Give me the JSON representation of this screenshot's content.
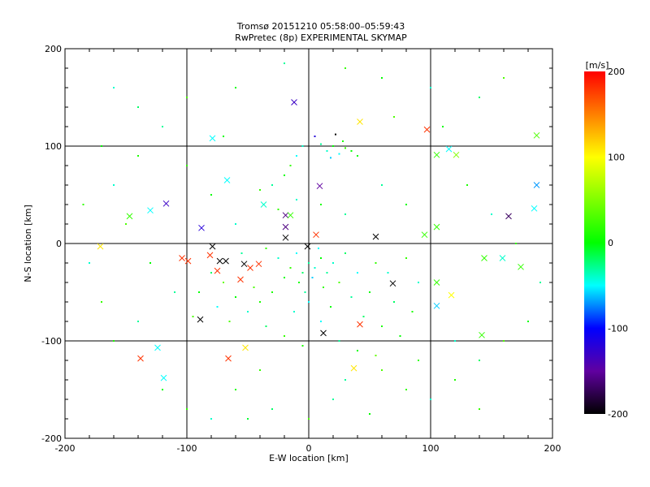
{
  "chart_data": {
    "type": "scatter",
    "title": "Tromsø 20151210 05:58:00–05:59:43",
    "subtitle": "RwPretec (8p) EXPERIMENTAL SKYMAP",
    "xlabel": "E-W location [km]",
    "ylabel": "N-S location [km]",
    "xlim": [
      -200,
      200
    ],
    "ylim": [
      -200,
      200
    ],
    "xticks": [
      "-200",
      "-100",
      "0",
      "100",
      "200"
    ],
    "yticks": [
      "-200",
      "-100",
      "0",
      "100",
      "200"
    ],
    "grid": true,
    "colorbar": {
      "label": "[m/s]",
      "range": [
        -200,
        200
      ],
      "ticks": [
        "200",
        "100",
        "0",
        "-100",
        "-200"
      ]
    },
    "crosses": [
      [
        -12,
        145,
        -130
      ],
      [
        97,
        117,
        180
      ],
      [
        -79,
        108,
        -50
      ],
      [
        187,
        111,
        30
      ],
      [
        115,
        97,
        -50
      ],
      [
        105,
        91,
        20
      ],
      [
        121,
        91,
        50
      ],
      [
        -67,
        65,
        -50
      ],
      [
        9,
        59,
        -150
      ],
      [
        -117,
        41,
        -130
      ],
      [
        -130,
        34,
        -50
      ],
      [
        -147,
        28,
        20
      ],
      [
        187,
        60,
        -70
      ],
      [
        164,
        28,
        -170
      ],
      [
        185,
        36,
        -50
      ],
      [
        -19,
        29,
        -160
      ],
      [
        -15,
        29,
        20
      ],
      [
        -19,
        17,
        -160
      ],
      [
        -88,
        16,
        -120
      ],
      [
        -37,
        40,
        -40
      ],
      [
        -19,
        6,
        -200
      ],
      [
        6,
        9,
        180
      ],
      [
        55,
        7,
        -200
      ],
      [
        95,
        9,
        20
      ],
      [
        105,
        17,
        20
      ],
      [
        -171,
        -3,
        110
      ],
      [
        -79,
        -3,
        -200
      ],
      [
        -1,
        -3,
        -200
      ],
      [
        -104,
        -15,
        180
      ],
      [
        -99,
        -18,
        180
      ],
      [
        -81,
        -12,
        180
      ],
      [
        -73,
        -18,
        -200
      ],
      [
        -68,
        -18,
        -200
      ],
      [
        -53,
        -21,
        -200
      ],
      [
        -41,
        -21,
        180
      ],
      [
        -48,
        -25,
        180
      ],
      [
        -75,
        -28,
        180
      ],
      [
        -56,
        -37,
        180
      ],
      [
        69,
        -41,
        -200
      ],
      [
        105,
        -40,
        20
      ],
      [
        117,
        -53,
        100
      ],
      [
        105,
        -64,
        -60
      ],
      [
        144,
        -15,
        20
      ],
      [
        159,
        -15,
        -40
      ],
      [
        174,
        -24,
        20
      ],
      [
        -89,
        -78,
        -200
      ],
      [
        42,
        -83,
        180
      ],
      [
        12,
        -92,
        -200
      ],
      [
        142,
        -94,
        20
      ],
      [
        -124,
        -107,
        -50
      ],
      [
        -138,
        -118,
        180
      ],
      [
        -66,
        -118,
        180
      ],
      [
        -52,
        -107,
        110
      ],
      [
        37,
        -128,
        110
      ],
      [
        -119,
        -138,
        -50
      ],
      [
        42,
        125,
        110
      ]
    ],
    "dots": [
      [
        0,
        -20,
        -30
      ],
      [
        5,
        -25,
        -40
      ],
      [
        -5,
        -30,
        -20
      ],
      [
        10,
        -15,
        0
      ],
      [
        -10,
        -10,
        -50
      ],
      [
        3,
        -35,
        -60
      ],
      [
        -8,
        -40,
        10
      ],
      [
        15,
        -30,
        -30
      ],
      [
        -15,
        -25,
        20
      ],
      [
        20,
        -20,
        -40
      ],
      [
        -20,
        -35,
        0
      ],
      [
        8,
        -5,
        -50
      ],
      [
        -3,
        -50,
        -30
      ],
      [
        12,
        -45,
        20
      ],
      [
        -25,
        -15,
        -40
      ],
      [
        25,
        -40,
        30
      ],
      [
        0,
        -60,
        -50
      ],
      [
        -30,
        -50,
        10
      ],
      [
        30,
        -10,
        -20
      ],
      [
        -12,
        -70,
        -40
      ],
      [
        18,
        -65,
        0
      ],
      [
        35,
        -55,
        -30
      ],
      [
        -35,
        -5,
        20
      ],
      [
        40,
        -30,
        -50
      ],
      [
        -40,
        -60,
        10
      ],
      [
        45,
        -75,
        -20
      ],
      [
        -45,
        -45,
        30
      ],
      [
        50,
        -50,
        0
      ],
      [
        -50,
        -70,
        -40
      ],
      [
        55,
        -20,
        20
      ],
      [
        -55,
        -10,
        -30
      ],
      [
        60,
        -85,
        10
      ],
      [
        -60,
        -55,
        0
      ],
      [
        65,
        -30,
        -40
      ],
      [
        -65,
        -80,
        30
      ],
      [
        70,
        -60,
        -20
      ],
      [
        -70,
        -40,
        40
      ],
      [
        75,
        -95,
        0
      ],
      [
        -75,
        -65,
        -50
      ],
      [
        80,
        -15,
        20
      ],
      [
        -80,
        -30,
        -20
      ],
      [
        85,
        -70,
        10
      ],
      [
        -90,
        -50,
        0
      ],
      [
        90,
        -40,
        -40
      ],
      [
        -95,
        -75,
        30
      ],
      [
        25,
        -100,
        -30
      ],
      [
        -20,
        -95,
        20
      ],
      [
        40,
        -110,
        0
      ],
      [
        55,
        -115,
        40
      ],
      [
        -35,
        -85,
        -20
      ],
      [
        10,
        -80,
        -50
      ],
      [
        -5,
        -105,
        10
      ],
      [
        60,
        -130,
        30
      ],
      [
        30,
        -140,
        -30
      ],
      [
        -40,
        -130,
        20
      ],
      [
        15,
        95,
        -40
      ],
      [
        20,
        100,
        0
      ],
      [
        25,
        92,
        -50
      ],
      [
        30,
        98,
        20
      ],
      [
        10,
        102,
        -30
      ],
      [
        35,
        95,
        0
      ],
      [
        18,
        88,
        -60
      ],
      [
        28,
        105,
        10
      ],
      [
        -5,
        100,
        -40
      ],
      [
        -15,
        80,
        20
      ],
      [
        -10,
        90,
        -50
      ],
      [
        40,
        90,
        0
      ],
      [
        5,
        110,
        -120
      ],
      [
        22,
        112,
        -200
      ],
      [
        -20,
        70,
        0
      ],
      [
        -30,
        60,
        -30
      ],
      [
        -40,
        55,
        20
      ],
      [
        -10,
        45,
        -40
      ],
      [
        10,
        40,
        10
      ],
      [
        30,
        30,
        -30
      ],
      [
        -25,
        35,
        20
      ],
      [
        -60,
        20,
        -40
      ],
      [
        -80,
        50,
        0
      ],
      [
        -100,
        80,
        20
      ],
      [
        -120,
        120,
        -30
      ],
      [
        -140,
        90,
        10
      ],
      [
        -160,
        60,
        -40
      ],
      [
        -150,
        20,
        30
      ],
      [
        -130,
        -20,
        0
      ],
      [
        -110,
        -50,
        -30
      ],
      [
        -170,
        -60,
        20
      ],
      [
        -180,
        -20,
        -40
      ],
      [
        -160,
        -100,
        10
      ],
      [
        -140,
        -80,
        -30
      ],
      [
        -120,
        -150,
        0
      ],
      [
        -100,
        -170,
        20
      ],
      [
        -80,
        -180,
        -40
      ],
      [
        -60,
        -150,
        10
      ],
      [
        -30,
        -170,
        -20
      ],
      [
        0,
        -180,
        30
      ],
      [
        20,
        -160,
        -30
      ],
      [
        50,
        -175,
        0
      ],
      [
        80,
        -150,
        20
      ],
      [
        100,
        -160,
        -40
      ],
      [
        120,
        -140,
        10
      ],
      [
        140,
        -120,
        -20
      ],
      [
        160,
        -100,
        30
      ],
      [
        180,
        -80,
        0
      ],
      [
        190,
        -40,
        -30
      ],
      [
        170,
        0,
        20
      ],
      [
        150,
        30,
        -40
      ],
      [
        130,
        60,
        10
      ],
      [
        110,
        120,
        0
      ],
      [
        140,
        150,
        -20
      ],
      [
        160,
        170,
        30
      ],
      [
        100,
        160,
        -40
      ],
      [
        60,
        170,
        0
      ],
      [
        30,
        180,
        20
      ],
      [
        -20,
        185,
        -30
      ],
      [
        -60,
        160,
        0
      ],
      [
        -100,
        150,
        30
      ],
      [
        -140,
        140,
        -20
      ],
      [
        -170,
        100,
        0
      ],
      [
        -185,
        40,
        20
      ],
      [
        60,
        60,
        -30
      ],
      [
        80,
        40,
        0
      ],
      [
        90,
        -120,
        20
      ],
      [
        120,
        -100,
        -40
      ],
      [
        -70,
        110,
        0
      ],
      [
        70,
        130,
        30
      ],
      [
        -50,
        -180,
        -10
      ],
      [
        140,
        -170,
        20
      ],
      [
        -160,
        160,
        -40
      ]
    ]
  }
}
